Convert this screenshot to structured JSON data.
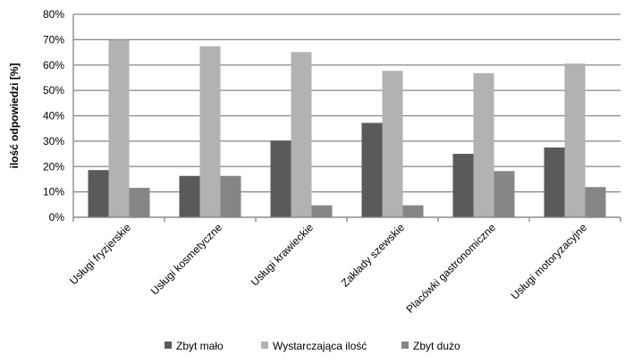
{
  "chart_data": {
    "type": "bar",
    "ylabel": "ilość odpowiedzi [%]",
    "ylim": [
      0,
      80
    ],
    "yticks": [
      "0%",
      "10%",
      "20%",
      "30%",
      "40%",
      "50%",
      "60%",
      "70%",
      "80%"
    ],
    "grid": true,
    "legend_position": "bottom",
    "categories": [
      "Usługi fryzjerskie",
      "Usługi kosmetyczne",
      "Usługi krawieckie",
      "Zakłady szewskie",
      "Placówki gastronomiczne",
      "Usługi motoryzacyjne"
    ],
    "series": [
      {
        "name": "Zbyt mało",
        "color": "#5a5a5a",
        "values": [
          18.6,
          16.3,
          30.2,
          37.2,
          25.0,
          27.5
        ]
      },
      {
        "name": "Wystarczająca ilość",
        "color": "#b2b2b2",
        "values": [
          69.8,
          67.4,
          65.1,
          57.7,
          56.8,
          60.6
        ]
      },
      {
        "name": "Zbyt dużo",
        "color": "#868686",
        "values": [
          11.6,
          16.3,
          4.7,
          4.7,
          18.2,
          11.9
        ]
      }
    ]
  }
}
